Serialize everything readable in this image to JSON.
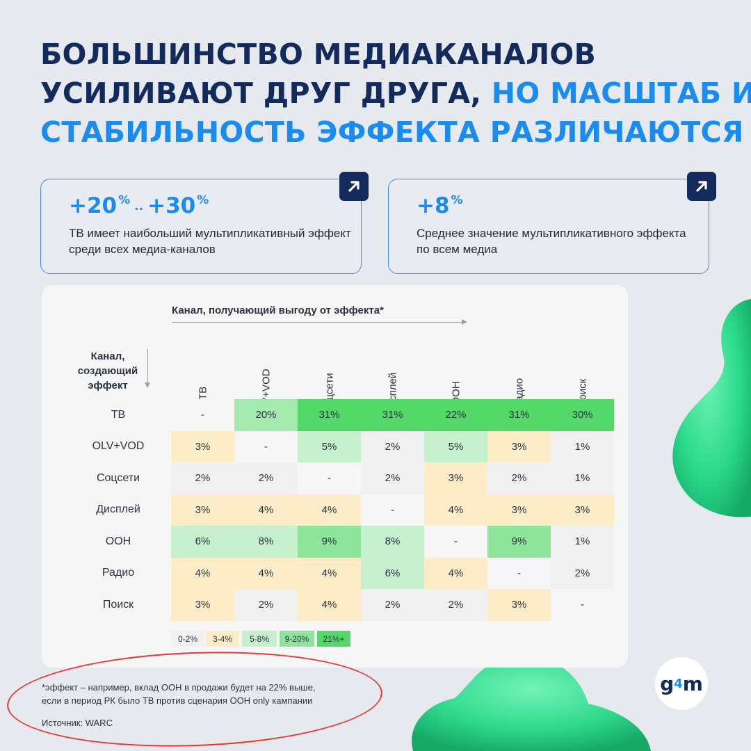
{
  "title": {
    "line1": "БОЛЬШИНСТВО МЕДИАКАНАЛОВ",
    "line2_dark": "УСИЛИВАЮТ ДРУГ ДРУГА,",
    "line2_accent": "НО МАСШТАБ И",
    "line3_accent": "СТАБИЛЬНОСТЬ ЭФФЕКТА РАЗЛИЧАЮТСЯ"
  },
  "cards": [
    {
      "value_a": "+20",
      "sup_a": "%",
      "dots": "..",
      "value_b": "+30",
      "sup_b": "%",
      "text": "ТВ имеет наибольший мультипликативный эффект среди всех медиа-каналов",
      "icon": "arrow-up-right-icon"
    },
    {
      "value": "+8",
      "sup": "%",
      "text": "Среднее значение мультипликативного эффекта по всем медиа",
      "icon": "arrow-up-right-icon"
    }
  ],
  "table": {
    "col_axis_label": "Канал, получающий выгоду от эффекта*",
    "row_axis_label": "Канал, создающий эффект",
    "columns": [
      "ТВ",
      "OLV+VOD",
      "Соцсети",
      "Дисплей",
      "OOH",
      "Радио",
      "Поиск"
    ],
    "rows": [
      {
        "label": "ТВ",
        "cells": [
          "-",
          "20%",
          "31%",
          "31%",
          "22%",
          "31%",
          "30%"
        ],
        "levels": [
          "none",
          "g3",
          "g4",
          "g4",
          "g4",
          "g4",
          "g4"
        ]
      },
      {
        "label": "OLV+VOD",
        "cells": [
          "3%",
          "-",
          "5%",
          "2%",
          "5%",
          "3%",
          "1%"
        ],
        "levels": [
          "y",
          "none",
          "g1",
          "n",
          "g1",
          "y",
          "n"
        ]
      },
      {
        "label": "Соцсети",
        "cells": [
          "2%",
          "2%",
          "-",
          "2%",
          "3%",
          "2%",
          "1%"
        ],
        "levels": [
          "n",
          "n",
          "none",
          "n",
          "y",
          "n",
          "n"
        ]
      },
      {
        "label": "Дисплей",
        "cells": [
          "3%",
          "4%",
          "4%",
          "-",
          "4%",
          "3%",
          "3%"
        ],
        "levels": [
          "y",
          "y",
          "y",
          "none",
          "y",
          "y",
          "y"
        ]
      },
      {
        "label": "OOH",
        "cells": [
          "6%",
          "8%",
          "9%",
          "8%",
          "-",
          "9%",
          "1%"
        ],
        "levels": [
          "g1",
          "g1",
          "g2",
          "g1",
          "none",
          "g2",
          "n"
        ]
      },
      {
        "label": "Радио",
        "cells": [
          "4%",
          "4%",
          "4%",
          "6%",
          "4%",
          "-",
          "2%"
        ],
        "levels": [
          "y",
          "y",
          "y",
          "g1",
          "y",
          "none",
          "n"
        ]
      },
      {
        "label": "Поиск",
        "cells": [
          "3%",
          "2%",
          "4%",
          "2%",
          "2%",
          "3%",
          "-"
        ],
        "levels": [
          "y",
          "n",
          "y",
          "n",
          "n",
          "y",
          "none"
        ]
      }
    ],
    "legend": [
      {
        "label": "0-2%",
        "level": "n"
      },
      {
        "label": "3-4%",
        "level": "y"
      },
      {
        "label": "5-8%",
        "level": "g1"
      },
      {
        "label": "9-20%",
        "level": "g2"
      },
      {
        "label": "21%+",
        "level": "g4"
      }
    ],
    "colors": {
      "none": "#f6f6f7",
      "n": "#f0f0f1",
      "y": "#fcecc8",
      "g1": "#c6f0cd",
      "g2": "#8fe49b",
      "g3": "#a4e9ad",
      "g4": "#54d86a"
    }
  },
  "footnote": {
    "line1": "*эффект – например, вклад OOH в продажи будет на 22% выше,",
    "line2": "если в период РК было ТВ против сценария OOH only кампании",
    "source": "Источник: WARC"
  },
  "logo": {
    "g": "g",
    "sup": "4",
    "m": "m"
  }
}
